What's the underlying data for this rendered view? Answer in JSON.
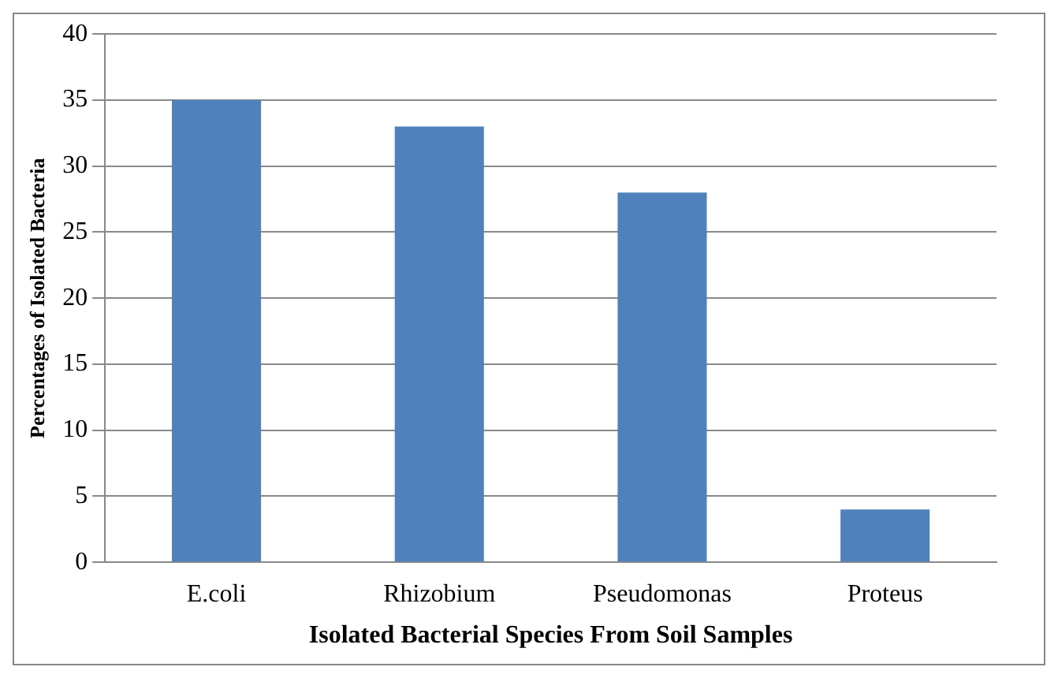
{
  "chart_data": {
    "type": "bar",
    "xlabel": "Isolated Bacterial Species From Soil Samples",
    "ylabel": "Percentages of Isolated Bacteria",
    "categories": [
      "E.coli",
      "Rhizobium",
      "Pseudomonas",
      "Proteus"
    ],
    "values": [
      35,
      33,
      28,
      4
    ],
    "color": "#4f81bd",
    "ylim": [
      0,
      40
    ],
    "yticks": [
      0,
      5,
      10,
      15,
      20,
      25,
      30,
      35,
      40
    ],
    "grid": "y",
    "legend": false
  }
}
